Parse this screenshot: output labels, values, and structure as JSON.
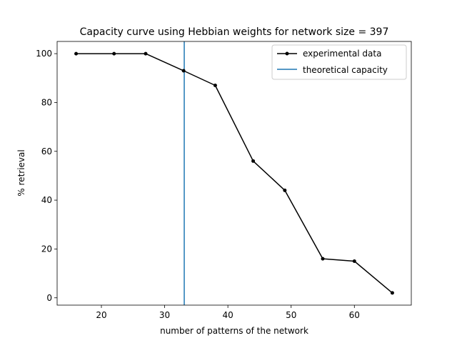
{
  "chart_data": {
    "type": "line",
    "title": "Capacity curve using Hebbian weights for network size = 397",
    "xlabel": "number of patterns of the network",
    "ylabel": "% retrieval",
    "xlim": [
      13,
      69
    ],
    "ylim": [
      -3,
      105
    ],
    "x_ticks": [
      20,
      30,
      40,
      50,
      60
    ],
    "y_ticks": [
      0,
      20,
      40,
      60,
      80,
      100
    ],
    "grid": false,
    "legend_position": "top-right",
    "series": [
      {
        "name": "experimental data",
        "color": "#000000",
        "marker": "dot",
        "x": [
          16,
          22,
          27,
          33,
          38,
          44,
          49,
          55,
          60,
          66
        ],
        "y": [
          100,
          100,
          100,
          93,
          87,
          56,
          44,
          16,
          15,
          2
        ]
      }
    ],
    "vlines": [
      {
        "name": "theoretical capacity",
        "x": 33.1,
        "color": "#1f77b4"
      }
    ]
  }
}
